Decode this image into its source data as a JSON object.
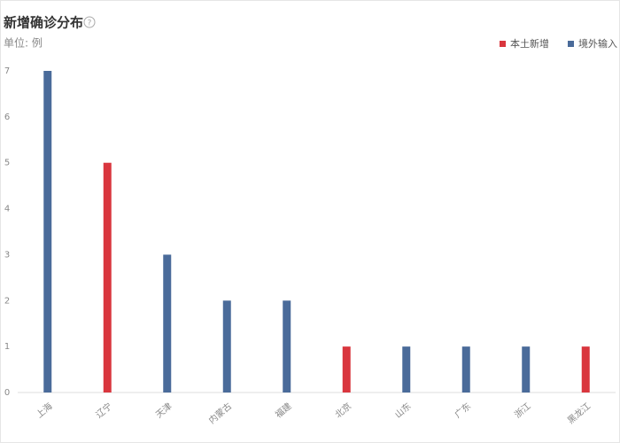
{
  "chart_data": {
    "type": "bar",
    "title": "新增确诊分布",
    "subtitle": "单位: 例",
    "categories": [
      "上海",
      "辽宁",
      "天津",
      "内蒙古",
      "福建",
      "北京",
      "山东",
      "广东",
      "浙江",
      "黑龙江"
    ],
    "series": [
      {
        "name": "本土新增",
        "color": "#d9363e",
        "values": [
          null,
          5,
          null,
          null,
          null,
          1,
          null,
          null,
          null,
          1
        ]
      },
      {
        "name": "境外输入",
        "color": "#4a6b9a",
        "values": [
          7,
          null,
          3,
          2,
          2,
          null,
          1,
          1,
          1,
          null
        ]
      }
    ],
    "ylim": [
      0,
      7
    ],
    "yticks": [
      0,
      1,
      2,
      3,
      4,
      5,
      6,
      7
    ],
    "grid": false,
    "legend": "top-right"
  }
}
